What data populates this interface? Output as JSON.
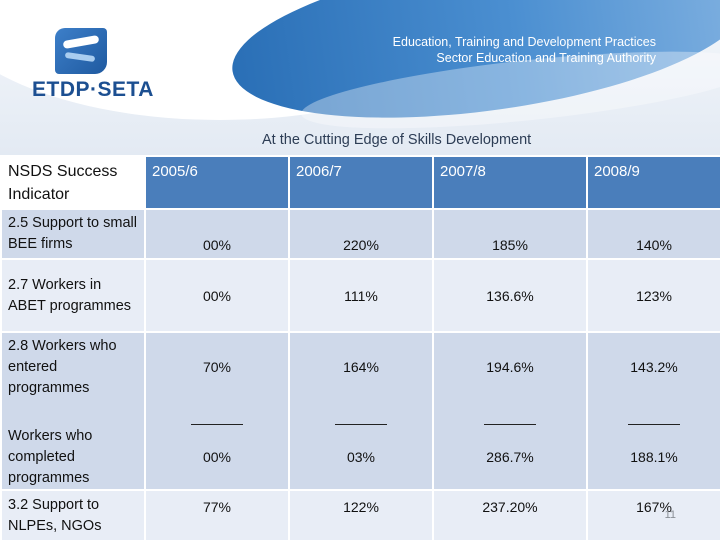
{
  "header": {
    "logo_text": "ETDP·SETA",
    "org_line1": "Education, Training and Development Practices",
    "org_line2": "Sector Education and Training Authority",
    "tagline": "At the Cutting Edge of Skills Development"
  },
  "table": {
    "head": {
      "indicator": "NSDS Success Indicator",
      "years": [
        "2005/6",
        "2006/7",
        "2007/8",
        "2008/9"
      ]
    },
    "rows": [
      {
        "label": "2.5 Support to small BEE firms",
        "values": [
          "00%",
          "220%",
          "185%",
          "140%"
        ]
      },
      {
        "label": "2.7 Workers in ABET programmes",
        "values": [
          "00%",
          "111%",
          "136.6%",
          "123%"
        ]
      },
      {
        "label": "2.8 Workers who entered programmes",
        "values": [
          "70%",
          "164%",
          "194.6%",
          "143.2%"
        ],
        "sub_label": "Workers who completed programmes",
        "sub_values": [
          "00%",
          "03%",
          "286.7%",
          "188.1%"
        ]
      },
      {
        "label": "3.2 Support to NLPEs, NGOs",
        "values": [
          "77%",
          "122%",
          "237.20%",
          "167%"
        ]
      }
    ]
  },
  "footer": {
    "slide_number": "11"
  },
  "colors": {
    "header_blue": "#4a7ebb",
    "row_dark": "#cfd9ea",
    "row_light": "#e8edf6"
  }
}
